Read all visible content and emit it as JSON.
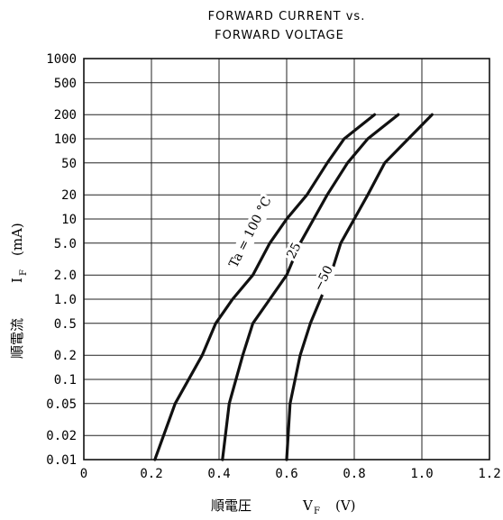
{
  "chart_data": {
    "type": "line",
    "title_lines": [
      "FORWARD CURRENT vs.",
      "FORWARD VOLTAGE"
    ],
    "xlabel": {
      "kanji": "順電圧",
      "symbol": "V",
      "sub": "F",
      "unit": "(V)"
    },
    "ylabel": {
      "kanji": "順電流",
      "symbol": "I",
      "sub": "F",
      "unit": "(mA)"
    },
    "xlim": [
      0,
      1.2
    ],
    "ylim": [
      0.01,
      1000
    ],
    "y_scale": "log",
    "x_ticks": [
      "0",
      "0.2",
      "0.4",
      "0.6",
      "0.8",
      "1.0",
      "1.2"
    ],
    "x_tick_values": [
      0,
      0.2,
      0.4,
      0.6,
      0.8,
      1.0,
      1.2
    ],
    "y_ticks": [
      "1000",
      "500",
      "200",
      "100",
      "50",
      "20",
      "10",
      "5.0",
      "2.0",
      "1.0",
      "0.5",
      "0.2",
      "0.1",
      "0.05",
      "0.02",
      "0.01"
    ],
    "y_tick_values": [
      1000,
      500,
      200,
      100,
      50,
      20,
      10,
      5,
      2,
      1,
      0.5,
      0.2,
      0.1,
      0.05,
      0.02,
      0.01
    ],
    "grid": true,
    "series": [
      {
        "name": "Ta = 100 °C",
        "label": "Ta = 100 °C",
        "points": [
          [
            0.21,
            0.01
          ],
          [
            0.27,
            0.05
          ],
          [
            0.35,
            0.2
          ],
          [
            0.39,
            0.5
          ],
          [
            0.44,
            1
          ],
          [
            0.5,
            2
          ],
          [
            0.55,
            5
          ],
          [
            0.6,
            10
          ],
          [
            0.66,
            20
          ],
          [
            0.72,
            50
          ],
          [
            0.77,
            100
          ],
          [
            0.86,
            200
          ]
        ]
      },
      {
        "name": "25",
        "label": "25",
        "points": [
          [
            0.41,
            0.01
          ],
          [
            0.43,
            0.05
          ],
          [
            0.47,
            0.2
          ],
          [
            0.5,
            0.5
          ],
          [
            0.55,
            1
          ],
          [
            0.6,
            2
          ],
          [
            0.64,
            5
          ],
          [
            0.68,
            10
          ],
          [
            0.72,
            20
          ],
          [
            0.78,
            50
          ],
          [
            0.84,
            100
          ],
          [
            0.93,
            200
          ]
        ]
      },
      {
        "name": "-50",
        "label": "−50",
        "points": [
          [
            0.6,
            0.01
          ],
          [
            0.61,
            0.05
          ],
          [
            0.64,
            0.2
          ],
          [
            0.67,
            0.5
          ],
          [
            0.7,
            1
          ],
          [
            0.73,
            2
          ],
          [
            0.76,
            5
          ],
          [
            0.8,
            10
          ],
          [
            0.84,
            20
          ],
          [
            0.89,
            50
          ],
          [
            0.96,
            100
          ],
          [
            1.03,
            200
          ]
        ]
      }
    ]
  }
}
